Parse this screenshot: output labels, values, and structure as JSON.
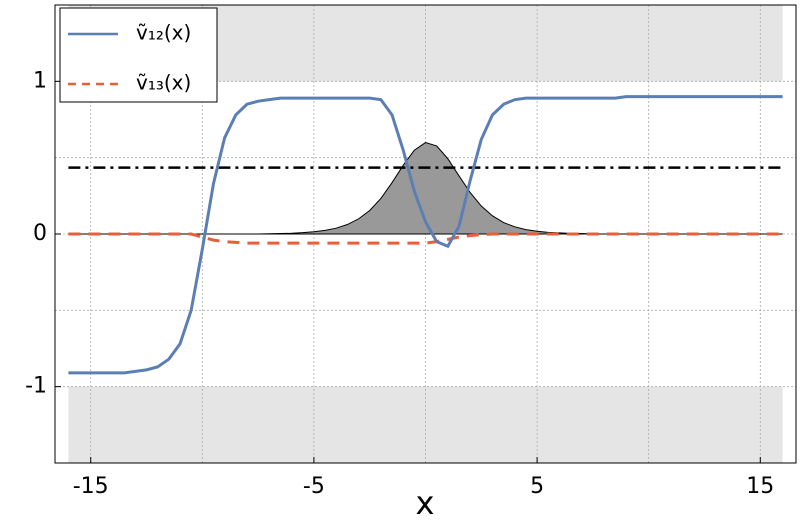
{
  "chart_data": {
    "type": "line",
    "xlabel": "x",
    "xlim": [
      -16.6,
      16.6
    ],
    "ylim": [
      -1.5,
      1.5
    ],
    "xticks": [
      -15,
      -5,
      5,
      15
    ],
    "yticks": [
      -1,
      0,
      1
    ],
    "xgrid": [
      -15,
      -10,
      -5,
      0,
      5,
      10,
      15
    ],
    "ygrid": [
      -1,
      -0.5,
      0,
      0.5,
      1
    ],
    "shaded_regions": [
      {
        "x": [
          -16,
          16
        ],
        "y": [
          1,
          1.5
        ],
        "color": "#e5e5e5"
      },
      {
        "x": [
          -16,
          16
        ],
        "y": [
          -1.5,
          -1
        ],
        "color": "#e5e5e5"
      }
    ],
    "hline": {
      "y": 0.435,
      "x": [
        -16,
        16
      ],
      "color": "#000000"
    },
    "x": [
      -16,
      -15.5,
      -15,
      -14.5,
      -14,
      -13.5,
      -13,
      -12.5,
      -12,
      -11.5,
      -11,
      -10.5,
      -10,
      -9.5,
      -9,
      -8.5,
      -8,
      -7.5,
      -7,
      -6.5,
      -6,
      -5.5,
      -5,
      -4.5,
      -4,
      -3.5,
      -3,
      -2.5,
      -2,
      -1.5,
      -1,
      -0.5,
      0,
      0.5,
      1,
      1.5,
      2,
      2.5,
      3,
      3.5,
      4,
      4.5,
      5,
      5.5,
      6,
      6.5,
      7,
      7.5,
      8,
      8.5,
      9,
      9.5,
      10,
      10.5,
      11,
      11.5,
      12,
      12.5,
      13,
      13.5,
      14,
      14.5,
      15,
      15.5,
      16
    ],
    "area": {
      "color": "#999999",
      "values": [
        0,
        0,
        0,
        0,
        0,
        0,
        0,
        0,
        0,
        0,
        0,
        0,
        0,
        0,
        0,
        0,
        0,
        0,
        0.002,
        0.003,
        0.005,
        0.009,
        0.015,
        0.024,
        0.038,
        0.062,
        0.099,
        0.154,
        0.233,
        0.336,
        0.45,
        0.549,
        0.599,
        0.577,
        0.493,
        0.381,
        0.272,
        0.183,
        0.119,
        0.075,
        0.047,
        0.029,
        0.018,
        0.011,
        0.007,
        0.004,
        0.003,
        0,
        0,
        0,
        0,
        0,
        0,
        0,
        0,
        0,
        0,
        0,
        0,
        0,
        0,
        0,
        0,
        0,
        0
      ]
    },
    "series": [
      {
        "name": "ṽ₁₂(x)",
        "color": "#5b7fb5",
        "dash": "none",
        "values": [
          -0.91,
          -0.91,
          -0.91,
          -0.91,
          -0.91,
          -0.91,
          -0.9,
          -0.89,
          -0.87,
          -0.82,
          -0.72,
          -0.5,
          -0.1,
          0.33,
          0.63,
          0.78,
          0.85,
          0.87,
          0.88,
          0.89,
          0.89,
          0.89,
          0.89,
          0.89,
          0.89,
          0.89,
          0.89,
          0.89,
          0.88,
          0.78,
          0.55,
          0.28,
          0.08,
          -0.05,
          -0.08,
          0.05,
          0.35,
          0.62,
          0.78,
          0.85,
          0.88,
          0.89,
          0.89,
          0.89,
          0.89,
          0.89,
          0.89,
          0.89,
          0.89,
          0.89,
          0.9,
          0.9,
          0.9,
          0.9,
          0.9,
          0.9,
          0.9,
          0.9,
          0.9,
          0.9,
          0.9,
          0.9,
          0.9,
          0.9,
          0.9
        ]
      },
      {
        "name": "ṽ₁₃(x)",
        "color": "#e8603a",
        "dash": "12 8",
        "values": [
          0,
          0,
          0,
          0,
          0,
          0,
          0,
          0,
          0,
          0,
          0,
          0,
          -0.02,
          -0.04,
          -0.05,
          -0.055,
          -0.06,
          -0.06,
          -0.06,
          -0.06,
          -0.06,
          -0.06,
          -0.06,
          -0.06,
          -0.06,
          -0.06,
          -0.06,
          -0.06,
          -0.06,
          -0.06,
          -0.06,
          -0.06,
          -0.06,
          -0.05,
          -0.035,
          -0.02,
          -0.01,
          -0.005,
          0,
          0,
          0,
          0,
          0,
          0,
          0,
          0,
          0,
          0,
          0,
          0,
          0,
          0,
          0,
          0,
          0,
          0,
          0,
          0,
          0,
          0,
          0,
          0,
          0,
          0,
          0
        ]
      }
    ],
    "grid": true
  }
}
